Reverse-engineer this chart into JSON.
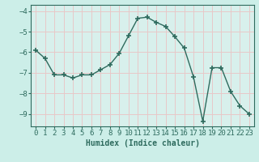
{
  "x": [
    0,
    1,
    2,
    3,
    4,
    5,
    6,
    7,
    8,
    9,
    10,
    11,
    12,
    13,
    14,
    15,
    16,
    17,
    18,
    19,
    20,
    21,
    22,
    23
  ],
  "y": [
    -5.9,
    -6.3,
    -7.1,
    -7.1,
    -7.25,
    -7.1,
    -7.1,
    -6.85,
    -6.6,
    -6.05,
    -5.2,
    -4.35,
    -4.3,
    -4.55,
    -4.75,
    -5.25,
    -5.8,
    -7.2,
    -9.35,
    -6.75,
    -6.75,
    -7.9,
    -8.6,
    -9.0
  ],
  "line_color": "#2e6b5e",
  "marker": "+",
  "marker_size": 5,
  "bg_color": "#cceee8",
  "plot_bg_color": "#d8f0ec",
  "grid_color": "#e8c8c8",
  "xlabel": "Humidex (Indice chaleur)",
  "xlabel_fontsize": 7,
  "tick_fontsize": 6.5,
  "ylim": [
    -9.6,
    -3.7
  ],
  "xlim": [
    -0.5,
    23.5
  ],
  "yticks": [
    -4,
    -5,
    -6,
    -7,
    -8,
    -9
  ],
  "xticks": [
    0,
    1,
    2,
    3,
    4,
    5,
    6,
    7,
    8,
    9,
    10,
    11,
    12,
    13,
    14,
    15,
    16,
    17,
    18,
    19,
    20,
    21,
    22,
    23
  ]
}
